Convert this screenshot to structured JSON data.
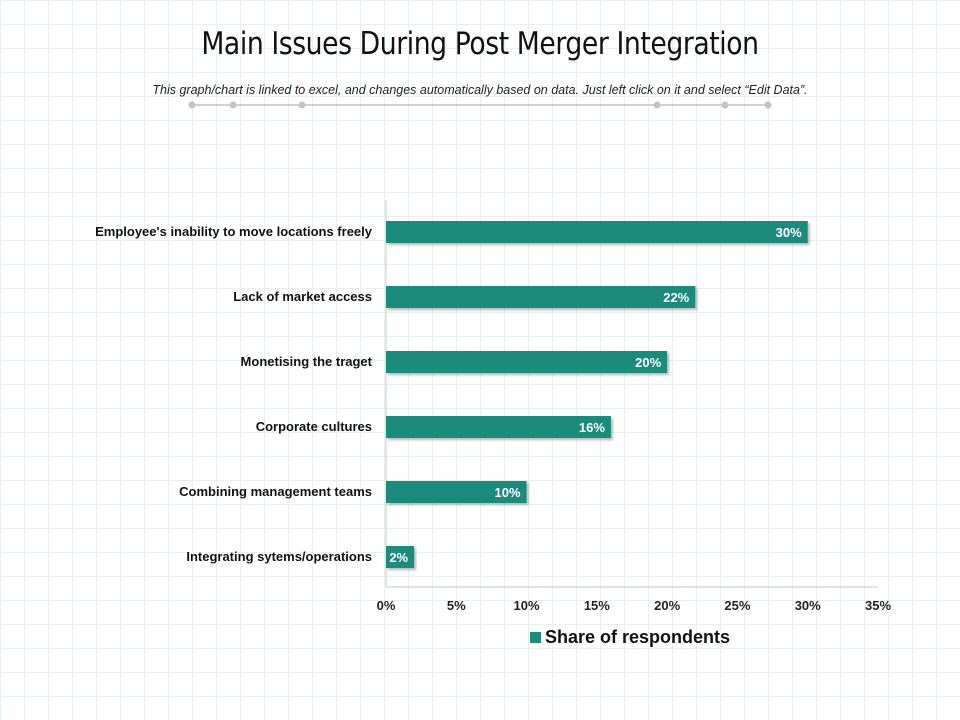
{
  "header": {
    "title": "Main Issues During Post Merger Integration",
    "subtitle": "This graph/chart is linked to excel, and changes automatically based on data. Just left click on it and select “Edit Data”."
  },
  "colors": {
    "bar": "#1f8a7d",
    "axis": "#c8c8c8",
    "dots": "#c4c4c4"
  },
  "chart_data": {
    "type": "bar",
    "orientation": "horizontal",
    "title": "Main Issues During Post Merger Integration",
    "categories": [
      "Employee's inability to move locations freely",
      "Lack of market access",
      "Monetising the traget",
      "Corporate cultures",
      "Combining management teams",
      "Integrating sytems/operations"
    ],
    "series": [
      {
        "name": "Share of respondents",
        "values": [
          30,
          22,
          20,
          16,
          10,
          2
        ]
      }
    ],
    "data_labels": [
      "30%",
      "22%",
      "20%",
      "16%",
      "10%",
      "2%"
    ],
    "xlim": [
      0,
      35
    ],
    "x_ticks": [
      0,
      5,
      10,
      15,
      20,
      25,
      30,
      35
    ],
    "x_tick_labels": [
      "0%",
      "5%",
      "10%",
      "15%",
      "20%",
      "25%",
      "30%",
      "35%"
    ],
    "xlabel": "",
    "ylabel": "",
    "legend": "bottom",
    "grid": false
  }
}
